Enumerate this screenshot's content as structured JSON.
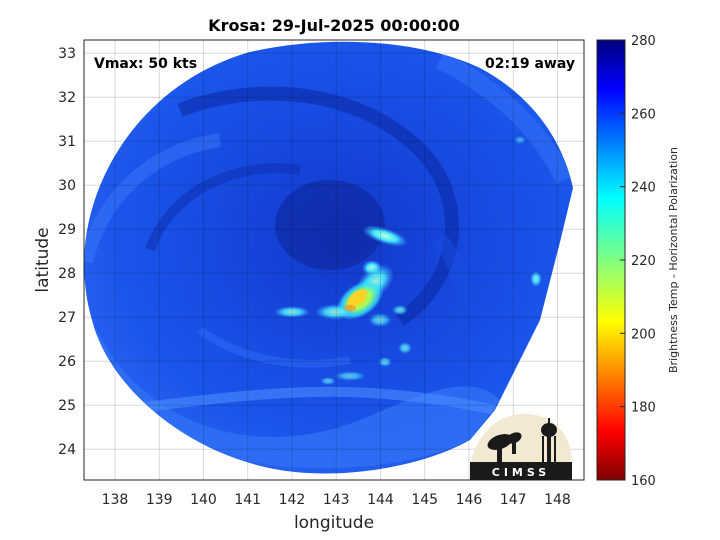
{
  "title": "Krosa: 29-Jul-2025 00:00:00",
  "annotations": {
    "vmax": "Vmax: 50 kts",
    "time_away": "02:19 away"
  },
  "axes": {
    "xlabel": "longitude",
    "ylabel": "latitude",
    "xlim": [
      137.3,
      148.6
    ],
    "ylim": [
      23.3,
      33.3
    ],
    "xticks": [
      "138",
      "139",
      "140",
      "141",
      "142",
      "143",
      "144",
      "145",
      "146",
      "147",
      "148"
    ],
    "yticks": [
      "24",
      "25",
      "26",
      "27",
      "28",
      "29",
      "30",
      "31",
      "32",
      "33"
    ],
    "grid": true
  },
  "colorbar": {
    "label": "Brightness Temp - Horizontal Polarization",
    "range": [
      160,
      280
    ],
    "ticks": [
      "160",
      "180",
      "200",
      "220",
      "240",
      "260",
      "280"
    ],
    "colormap": "jet",
    "orientation": "vertical",
    "placement": "right"
  },
  "swath_colors": {
    "background_swath": "#1a4fe6",
    "dark_band": "#1030b8",
    "light_band": "#3a7cff",
    "warm_core": "#ffd020"
  },
  "logo": {
    "text": "CIMSS"
  }
}
